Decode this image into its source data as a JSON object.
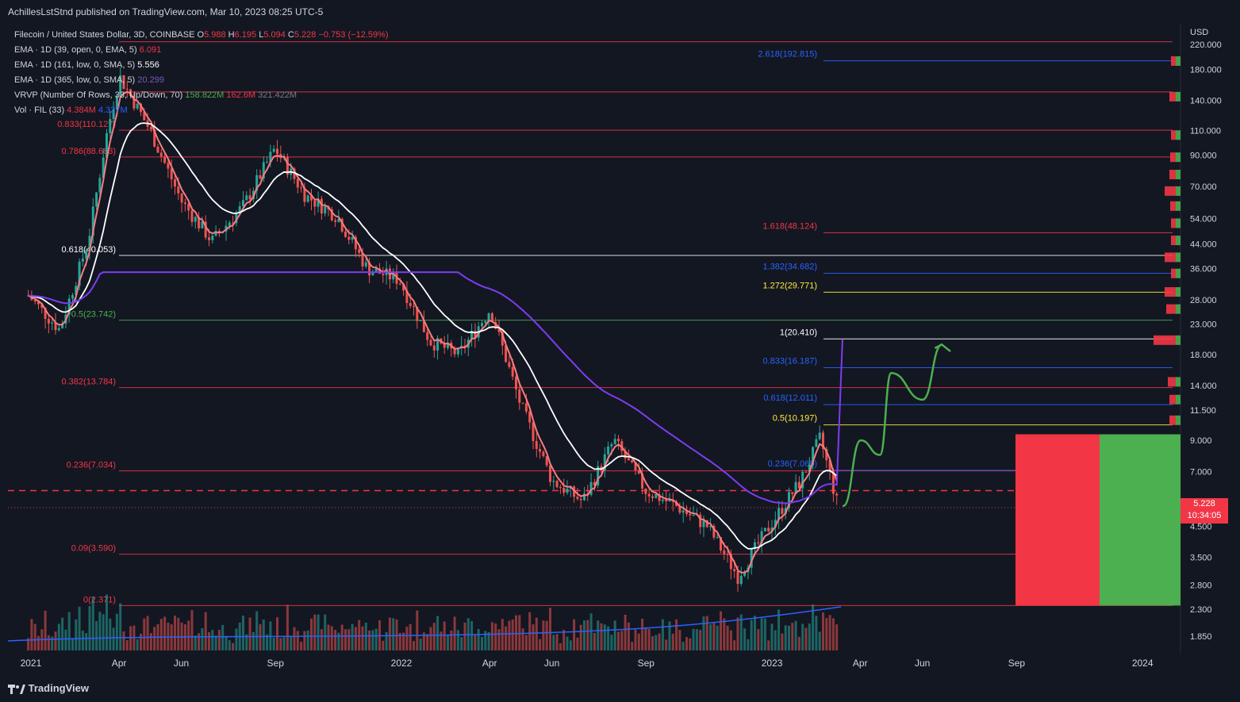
{
  "header": {
    "publisher": "AchillesLstStnd published on TradingView.com, Mar 10, 2023 08:25 UTC-5"
  },
  "legend": {
    "symbol": "Filecoin / United States Dollar, 3D, COINBASE",
    "ohlc": {
      "o_label": "O",
      "o": "5.988",
      "h_label": "H",
      "h": "6.195",
      "l_label": "L",
      "l": "5.094",
      "c_label": "C",
      "c": "5.228",
      "chg": "−0.753 (−12.59%)"
    },
    "ema1": {
      "label": "EMA · 1D (39, open, 0, EMA, 5)",
      "value": "6.091"
    },
    "ema2": {
      "label": "EMA · 1D (161, low, 0, SMA, 5)",
      "value": "5.556"
    },
    "ema3": {
      "label": "EMA · 1D (365, low, 0, SMA, 5)",
      "value": "20.299"
    },
    "vrvp": {
      "label": "VRVP (Number Of Rows, 33, Up/Down, 70)",
      "v1": "158.822M",
      "v2": "162.6M",
      "v3": "321.422M"
    },
    "vol": {
      "label": "Vol · FIL (33)",
      "v1": "4.384M",
      "v2": "4.327M"
    }
  },
  "price_tag": {
    "price": "5.228",
    "countdown": "10:34:05"
  },
  "brand": {
    "name": "TradingView"
  },
  "chart_data": {
    "type": "candlestick",
    "symbol": "FIL/USD",
    "timeframe": "3D",
    "y_scale": "log",
    "y_axis_unit": "USD",
    "y_ticks": [
      "220.000",
      "180.000",
      "140.000",
      "110.000",
      "90.000",
      "70.000",
      "54.000",
      "44.000",
      "36.000",
      "28.000",
      "23.000",
      "18.000",
      "14.000",
      "11.500",
      "9.000",
      "7.000",
      "5.500",
      "4.500",
      "3.500",
      "2.800",
      "2.300",
      "1.850"
    ],
    "x_ticks": [
      "2021",
      "Apr",
      "Jun",
      "Sep",
      "2022",
      "Apr",
      "Jun",
      "Sep",
      "2023",
      "Apr",
      "Jun",
      "Sep",
      "2024"
    ],
    "price_path": [
      [
        "2021-01",
        29
      ],
      [
        "2021-02",
        22
      ],
      [
        "2021-03",
        45
      ],
      [
        "2021-03-20",
        110
      ],
      [
        "2021-04",
        170
      ],
      [
        "2021-05",
        110
      ],
      [
        "2021-06",
        62
      ],
      [
        "2021-07",
        45
      ],
      [
        "2021-08",
        60
      ],
      [
        "2021-09",
        95
      ],
      [
        "2021-10",
        65
      ],
      [
        "2021-11",
        55
      ],
      [
        "2021-12",
        36
      ],
      [
        "2022-01",
        33
      ],
      [
        "2022-02",
        20
      ],
      [
        "2022-03",
        18
      ],
      [
        "2022-04",
        26
      ],
      [
        "2022-05",
        12
      ],
      [
        "2022-06",
        6.5
      ],
      [
        "2022-07",
        5.5
      ],
      [
        "2022-08",
        9
      ],
      [
        "2022-09",
        6
      ],
      [
        "2022-10",
        5.3
      ],
      [
        "2022-11",
        4.5
      ],
      [
        "2022-12",
        3.0
      ],
      [
        "2023-01",
        4.5
      ],
      [
        "2023-02",
        6.5
      ],
      [
        "2023-02-20",
        9.2
      ],
      [
        "2023-03-10",
        5.228
      ]
    ],
    "fib_left": [
      {
        "label": "0.786(88.683)",
        "value": 88.683,
        "color": "#f23645"
      },
      {
        "label": "0.833(110.127)",
        "value": 110.127,
        "color": "#f23645"
      },
      {
        "label": "0.618(40.053)",
        "value": 40.053,
        "color": "#ffffff"
      },
      {
        "label": "0.5(23.742)",
        "value": 23.742,
        "color": "#4caf50"
      },
      {
        "label": "0.382(13.784)",
        "value": 13.784,
        "color": "#f23645"
      },
      {
        "label": "0.236(7.034)",
        "value": 7.034,
        "color": "#f23645"
      },
      {
        "label": "0.09(3.590)",
        "value": 3.59,
        "color": "#f23645"
      },
      {
        "label": "0(2.371)",
        "value": 2.371,
        "color": "#f23645"
      }
    ],
    "fib_right": [
      {
        "label": "2.618(192.815)",
        "value": 192.815,
        "color": "#2962ff"
      },
      {
        "label": "1.618(48.124)",
        "value": 48.124,
        "color": "#f23645"
      },
      {
        "label": "1.382(34.682)",
        "value": 34.682,
        "color": "#2962ff"
      },
      {
        "label": "1.272(29.771)",
        "value": 29.771,
        "color": "#ffeb3b"
      },
      {
        "label": "1(20.410)",
        "value": 20.41,
        "color": "#ffffff"
      },
      {
        "label": "0.833(16.187)",
        "value": 16.187,
        "color": "#2962ff"
      },
      {
        "label": "0.618(12.011)",
        "value": 12.011,
        "color": "#2962ff"
      },
      {
        "label": "0.5(10.197)",
        "value": 10.197,
        "color": "#ffeb3b"
      },
      {
        "label": "0.236(7.068)",
        "value": 7.068,
        "color": "#2962ff"
      }
    ],
    "horizontal_dashed": 6.0,
    "projection_path": [
      [
        "2023-03-15",
        5.3
      ],
      [
        "2023-04",
        9.0
      ],
      [
        "2023-04-20",
        8.0
      ],
      [
        "2023-05",
        15.5
      ],
      [
        "2023-06",
        12.5
      ],
      [
        "2023-06-20",
        19.5
      ]
    ],
    "position_box": {
      "entry": 9.45,
      "stop": 2.371,
      "target_side": "green",
      "risk_side": "red"
    },
    "colors": {
      "up": "#26a69a",
      "down": "#ef5350",
      "ema_fast": "#f77c80",
      "ema_mid": "#ffffff",
      "ema_slow": "#7e3cf2",
      "projection": "#4caf50"
    }
  }
}
